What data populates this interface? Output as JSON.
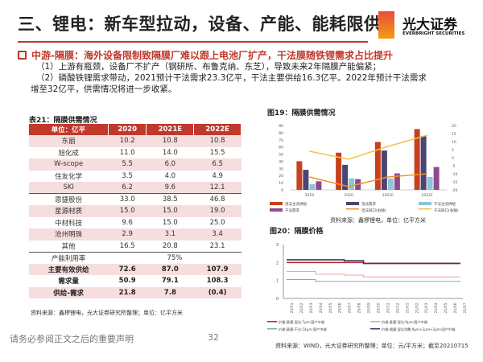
{
  "title": "三、锂电：新车型拉动，设备、产能、能耗限供",
  "logo": {
    "cn": "光大证券",
    "en": "EVERBRIGHT SECURITIES"
  },
  "subheading": "中游-隔膜：海外设备限制致隔膜厂难以跟上电池厂扩产，干法膜随铁锂需求占比提升",
  "paragraphs": [
    "（1）上游有瓶颈，设备厂不扩产（钢研所、布鲁克纳、东芝），导致未来2年隔膜产能偏紧；",
    "（2）磷酸铁锂需求带动，2021预计干法需求23.3亿平，干法主要供给16.3亿平。2022年预计干法需求",
    "增至32亿平，供需情况将进一步收紧。"
  ],
  "table21": {
    "caption": "表21：隔膜供需情况",
    "headers": [
      "单位：亿平",
      "2020",
      "2021E",
      "2022E"
    ],
    "rows": [
      [
        "东丽",
        "10.2",
        "10.8",
        "10.8"
      ],
      [
        "旭化成",
        "11.0",
        "14.0",
        "15.5"
      ],
      [
        "W-scope",
        "5.5",
        "6.0",
        "6.5"
      ],
      [
        "住友化学",
        "3.5",
        "4.0",
        "4.9"
      ],
      [
        "SKI",
        "6.2",
        "9.6",
        "12.1"
      ],
      [
        "恩捷股份",
        "33.0",
        "38.5",
        "46.8"
      ],
      [
        "星源材质",
        "15.0",
        "15.0",
        "19.0"
      ],
      [
        "中材科技",
        "9.6",
        "15.0",
        "25.0"
      ],
      [
        "沧州明珠",
        "2.9",
        "3.1",
        "3.4"
      ],
      [
        "其他",
        "16.5",
        "20.8",
        "23.1"
      ]
    ],
    "utilization": [
      "产能利用率",
      "75%"
    ],
    "totals": [
      [
        "主要有效供给",
        "72.6",
        "87.0",
        "107.9"
      ],
      [
        "需求量",
        "50.9",
        "79.1",
        "108.3"
      ],
      [
        "供给-需求",
        "21.8",
        "7.8",
        "(0.4)"
      ]
    ],
    "source": "资料来源：鑫椤锂电，光大证券研究所整理；单位：亿平方米"
  },
  "chart_data": [
    {
      "type": "bar",
      "title": "图19：隔膜供需情况",
      "categories": [
        "2019",
        "2020",
        "2021E",
        "2022E"
      ],
      "ylim": [
        0,
        90
      ],
      "y2lim": [
        -20,
        20
      ],
      "yticks": [
        "0",
        "10",
        "20",
        "30",
        "40",
        "50",
        "60",
        "70",
        "80",
        "90"
      ],
      "y2ticks": [
        "-20",
        "-15",
        "-10",
        "-5",
        "0",
        "5",
        "10",
        "15",
        "20"
      ],
      "series": [
        {
          "name": "湿法主流供给",
          "kind": "bar",
          "color": "#c8401c",
          "values": [
            40,
            52,
            67,
            85
          ]
        },
        {
          "name": "湿法需求",
          "kind": "bar",
          "color": "#4a4574",
          "values": [
            28,
            35,
            55,
            75
          ]
        },
        {
          "name": "干法主流供给",
          "kind": "bar",
          "color": "#8ec3d8",
          "values": [
            8,
            16,
            16,
            18
          ]
        },
        {
          "name": "干法需求",
          "kind": "bar",
          "color": "#8e4a8e",
          "values": [
            12,
            15,
            23,
            32
          ]
        },
        {
          "name": "湿法缺口(右轴)",
          "kind": "line",
          "axis": "right",
          "color": "#f0922a",
          "values": [
            -12,
            -18,
            -12,
            -10
          ]
        },
        {
          "name": "干法缺口(右轴)",
          "kind": "line",
          "axis": "right",
          "color": "#f2c24a",
          "values": [
            4,
            -1,
            7,
            14
          ]
        }
      ],
      "legend": "bottom",
      "source": "资料来源：鑫椤锂电，单位：亿平方米"
    },
    {
      "type": "line",
      "title": "图20：隔膜价格",
      "categories": [
        "20/01",
        "20/02",
        "20/03",
        "20/04",
        "20/05",
        "20/06",
        "20/07",
        "20/08",
        "20/09",
        "20/10",
        "20/11",
        "20/12",
        "21/01",
        "21/02",
        "21/03",
        "21/04",
        "21/05",
        "21/06",
        "21/07"
      ],
      "ylim": [
        0,
        3
      ],
      "yticks": [
        "0",
        "1",
        "2",
        "3"
      ],
      "series": [
        {
          "name": "价格:基膜:湿法:7μm:国产中端",
          "color": "#b03030",
          "values": [
            2.0,
            2.0,
            2.0,
            2.0,
            2.0,
            2.0,
            2.0,
            2.0,
            1.95,
            1.95,
            1.95,
            1.95,
            1.95,
            1.95,
            1.95,
            1.95,
            1.95,
            1.95,
            1.95
          ]
        },
        {
          "name": "价格:基膜:湿法:9μm:国产中端",
          "color": "#f0a0a0",
          "values": [
            1.5,
            1.5,
            1.5,
            1.35,
            1.35,
            1.35,
            1.3,
            1.3,
            1.2,
            1.2,
            1.2,
            1.2,
            1.2,
            1.2,
            1.2,
            1.2,
            1.2,
            1.2,
            1.2
          ]
        },
        {
          "name": "价格:基膜:干法:14μm:国产中端",
          "color": "#6fb3c0",
          "values": [
            1.05,
            1.05,
            1.05,
            0.95,
            0.95,
            0.95,
            0.95,
            0.95,
            0.95,
            0.95,
            0.95,
            0.95,
            0.95,
            0.95,
            0.95,
            0.95,
            0.95,
            0.95,
            0.95
          ]
        },
        {
          "name": "价格:隔膜:湿法涂覆:9μm+2μm+2μm:国产中端",
          "color": "#3e3a66",
          "values": [
            2.15,
            2.15,
            2.15,
            2.15,
            2.15,
            2.15,
            2.1,
            2.1,
            1.95,
            1.95,
            1.95,
            1.95,
            1.95,
            1.95,
            1.95,
            1.95,
            1.95,
            1.95,
            1.95
          ]
        }
      ],
      "legend": "bottom",
      "source": "资料来源：WIND，光大证券研究所整理；单位：元/平方米；截至20210715"
    }
  ],
  "footer": {
    "disclaimer": "请务必参阅正文之后的重要声明",
    "page": "32"
  }
}
